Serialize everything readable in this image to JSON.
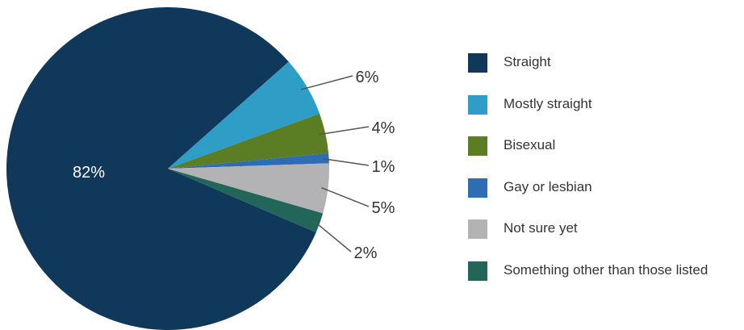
{
  "chart_data": {
    "type": "pie",
    "title": "",
    "slices": [
      {
        "label": "Straight",
        "value": 82,
        "display": "82%",
        "color": "#10385a"
      },
      {
        "label": "Mostly straight",
        "value": 6,
        "display": "6%",
        "color": "#2f9ec7"
      },
      {
        "label": "Bisexual",
        "value": 4,
        "display": "4%",
        "color": "#5b7d23"
      },
      {
        "label": "Gay or lesbian",
        "value": 1,
        "display": "1%",
        "color": "#2e6db4"
      },
      {
        "label": "Not sure yet",
        "value": 5,
        "display": "5%",
        "color": "#b3b3b5"
      },
      {
        "label": "Something other than those listed",
        "value": 2,
        "display": "2%",
        "color": "#216659"
      }
    ],
    "legend_position": "right"
  }
}
